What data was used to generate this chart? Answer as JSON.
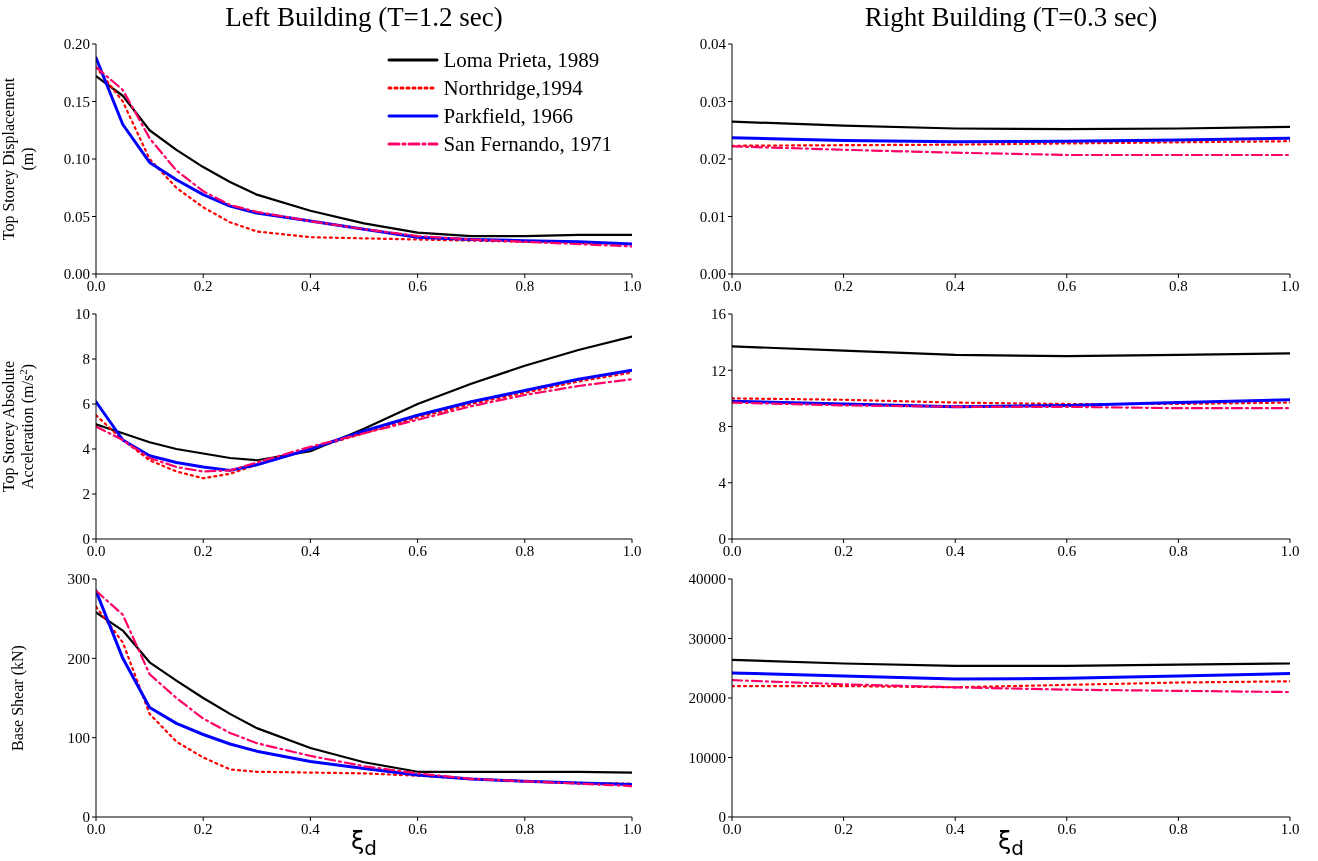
{
  "chart_data": [
    {
      "type": "line",
      "title": "Left Building (T=1.2 sec)",
      "ylabel": "Top Storey Displacement (m)",
      "x": [
        0,
        0.05,
        0.1,
        0.15,
        0.2,
        0.25,
        0.3,
        0.4,
        0.5,
        0.6,
        0.7,
        0.8,
        0.9,
        1.0
      ],
      "xlim": [
        0,
        1
      ],
      "xticks": [
        {
          "value": 0,
          "label": "0.0"
        },
        {
          "value": 0.2,
          "label": "0.2"
        },
        {
          "value": 0.4,
          "label": "0.4"
        },
        {
          "value": 0.6,
          "label": "0.6"
        },
        {
          "value": 0.8,
          "label": "0.8"
        },
        {
          "value": 1,
          "label": "1.0"
        }
      ],
      "ylim": [
        0,
        0.2
      ],
      "yticks": [
        {
          "value": 0,
          "label": "0.00"
        },
        {
          "value": 0.05,
          "label": "0.05"
        },
        {
          "value": 0.1,
          "label": "0.10"
        },
        {
          "value": 0.15,
          "label": "0.15"
        },
        {
          "value": 0.2,
          "label": "0.20"
        }
      ],
      "grid": false,
      "legend": "top right",
      "marker": "none",
      "series": [
        {
          "name": "Loma Prieta, 1989",
          "color": "#000000",
          "line_style": "solid",
          "values": [
            0.172,
            0.155,
            0.125,
            0.108,
            0.093,
            0.08,
            0.069,
            0.055,
            0.044,
            0.036,
            0.033,
            0.033,
            0.034,
            0.034
          ]
        },
        {
          "name": "Northridge,1994",
          "color": "#ff0000",
          "line_style": "dotted",
          "values": [
            0.18,
            0.15,
            0.1,
            0.075,
            0.058,
            0.045,
            0.037,
            0.032,
            0.031,
            0.03,
            0.029,
            0.028,
            0.027,
            0.026
          ]
        },
        {
          "name": "Parkfield, 1966",
          "color": "#0000ff",
          "line_style": "solid",
          "values": [
            0.188,
            0.13,
            0.097,
            0.082,
            0.069,
            0.059,
            0.053,
            0.046,
            0.039,
            0.032,
            0.03,
            0.029,
            0.028,
            0.026
          ]
        },
        {
          "name": "San Fernando, 1971",
          "color": "#ff0066",
          "line_style": "dashed",
          "values": [
            0.18,
            0.16,
            0.118,
            0.09,
            0.072,
            0.06,
            0.054,
            0.046,
            0.039,
            0.033,
            0.03,
            0.028,
            0.026,
            0.024
          ]
        }
      ]
    },
    {
      "type": "line",
      "title": "Right Building (T=0.3 sec)",
      "x": [
        0,
        0.2,
        0.4,
        0.6,
        0.8,
        1.0
      ],
      "xlim": [
        0,
        1
      ],
      "xticks": [
        {
          "value": 0,
          "label": "0.0"
        },
        {
          "value": 0.2,
          "label": "0.2"
        },
        {
          "value": 0.4,
          "label": "0.4"
        },
        {
          "value": 0.6,
          "label": "0.6"
        },
        {
          "value": 0.8,
          "label": "0.8"
        },
        {
          "value": 1,
          "label": "1.0"
        }
      ],
      "ylim": [
        0,
        0.04
      ],
      "yticks": [
        {
          "value": 0,
          "label": "0.00"
        },
        {
          "value": 0.01,
          "label": "0.01"
        },
        {
          "value": 0.02,
          "label": "0.02"
        },
        {
          "value": 0.03,
          "label": "0.03"
        },
        {
          "value": 0.04,
          "label": "0.04"
        }
      ],
      "grid": false,
      "marker": "none",
      "series": [
        {
          "color": "#000000",
          "line_style": "solid",
          "values": [
            0.0265,
            0.0258,
            0.0253,
            0.0252,
            0.0253,
            0.0256
          ]
        },
        {
          "color": "#ff0000",
          "line_style": "dotted",
          "values": [
            0.0223,
            0.0224,
            0.0225,
            0.0227,
            0.0229,
            0.0231
          ]
        },
        {
          "color": "#0000ff",
          "line_style": "solid",
          "values": [
            0.0237,
            0.0232,
            0.023,
            0.0231,
            0.0233,
            0.0236
          ]
        },
        {
          "color": "#ff0066",
          "line_style": "dashed",
          "values": [
            0.0222,
            0.0216,
            0.0211,
            0.0207,
            0.0207,
            0.0207
          ]
        }
      ]
    },
    {
      "type": "line",
      "ylabel": "Top Storey Absolute Acceleration (m/s$^{2}$)",
      "x": [
        0,
        0.05,
        0.1,
        0.15,
        0.2,
        0.25,
        0.3,
        0.4,
        0.5,
        0.6,
        0.7,
        0.8,
        0.9,
        1.0
      ],
      "xlim": [
        0,
        1
      ],
      "xticks": [
        {
          "value": 0,
          "label": "0.0"
        },
        {
          "value": 0.2,
          "label": "0.2"
        },
        {
          "value": 0.4,
          "label": "0.4"
        },
        {
          "value": 0.6,
          "label": "0.6"
        },
        {
          "value": 0.8,
          "label": "0.8"
        },
        {
          "value": 1,
          "label": "1.0"
        }
      ],
      "ylim": [
        0,
        10
      ],
      "yticks": [
        0,
        2,
        4,
        6,
        8,
        10
      ],
      "grid": false,
      "marker": "none",
      "series": [
        {
          "color": "#000000",
          "line_style": "solid",
          "values": [
            5.1,
            4.7,
            4.3,
            4.0,
            3.8,
            3.6,
            3.5,
            3.9,
            4.9,
            6.0,
            6.9,
            7.7,
            8.4,
            9.0
          ]
        },
        {
          "color": "#ff0000",
          "line_style": "dotted",
          "values": [
            5.5,
            4.4,
            3.5,
            3.0,
            2.7,
            2.9,
            3.3,
            4.0,
            4.7,
            5.4,
            6.0,
            6.5,
            7.0,
            7.4
          ]
        },
        {
          "color": "#0000ff",
          "line_style": "solid",
          "values": [
            6.1,
            4.4,
            3.7,
            3.4,
            3.2,
            3.05,
            3.3,
            4.0,
            4.8,
            5.5,
            6.1,
            6.6,
            7.1,
            7.5
          ]
        },
        {
          "color": "#ff0066",
          "line_style": "dashed",
          "values": [
            5.0,
            4.4,
            3.6,
            3.2,
            3.0,
            3.05,
            3.4,
            4.1,
            4.7,
            5.3,
            5.9,
            6.4,
            6.8,
            7.1
          ]
        }
      ]
    },
    {
      "type": "line",
      "x": [
        0,
        0.2,
        0.4,
        0.6,
        0.8,
        1.0
      ],
      "xlim": [
        0,
        1
      ],
      "xticks": [
        {
          "value": 0,
          "label": "0.0"
        },
        {
          "value": 0.2,
          "label": "0.2"
        },
        {
          "value": 0.4,
          "label": "0.4"
        },
        {
          "value": 0.6,
          "label": "0.6"
        },
        {
          "value": 0.8,
          "label": "0.8"
        },
        {
          "value": 1,
          "label": "1.0"
        }
      ],
      "ylim": [
        0,
        16
      ],
      "yticks": [
        0,
        4,
        8,
        12,
        16
      ],
      "grid": false,
      "marker": "none",
      "series": [
        {
          "color": "#000000",
          "line_style": "solid",
          "values": [
            13.7,
            13.4,
            13.1,
            13.0,
            13.1,
            13.2
          ]
        },
        {
          "color": "#ff0000",
          "line_style": "dotted",
          "values": [
            10.0,
            9.9,
            9.7,
            9.6,
            9.6,
            9.7
          ]
        },
        {
          "color": "#0000ff",
          "line_style": "solid",
          "values": [
            9.8,
            9.6,
            9.4,
            9.5,
            9.7,
            9.9
          ]
        },
        {
          "color": "#ff0066",
          "line_style": "dashed",
          "values": [
            9.7,
            9.5,
            9.4,
            9.4,
            9.3,
            9.3
          ]
        }
      ]
    },
    {
      "type": "line",
      "ylabel": "Base Shear (kN)",
      "xlabel": "ξ$_{d}$",
      "x": [
        0,
        0.05,
        0.1,
        0.15,
        0.2,
        0.25,
        0.3,
        0.4,
        0.5,
        0.6,
        0.7,
        0.8,
        0.9,
        1.0
      ],
      "xlim": [
        0,
        1
      ],
      "xticks": [
        {
          "value": 0,
          "label": "0.0"
        },
        {
          "value": 0.2,
          "label": "0.2"
        },
        {
          "value": 0.4,
          "label": "0.4"
        },
        {
          "value": 0.6,
          "label": "0.6"
        },
        {
          "value": 0.8,
          "label": "0.8"
        },
        {
          "value": 1,
          "label": "1.0"
        }
      ],
      "ylim": [
        0,
        300
      ],
      "yticks": [
        0,
        100,
        200,
        300
      ],
      "grid": false,
      "marker": "none",
      "series": [
        {
          "color": "#000000",
          "line_style": "solid",
          "values": [
            258,
            235,
            195,
            172,
            150,
            130,
            112,
            87,
            69,
            57,
            57,
            57,
            57,
            56
          ]
        },
        {
          "color": "#ff0000",
          "line_style": "dotted",
          "values": [
            265,
            220,
            130,
            95,
            75,
            60,
            57,
            56,
            55,
            52,
            48,
            45,
            43,
            42
          ]
        },
        {
          "color": "#0000ff",
          "line_style": "solid",
          "values": [
            285,
            200,
            138,
            118,
            104,
            92,
            83,
            70,
            61,
            53,
            48,
            45,
            43,
            41
          ]
        },
        {
          "color": "#ff0066",
          "line_style": "dashed",
          "values": [
            285,
            255,
            180,
            150,
            124,
            106,
            93,
            77,
            64,
            55,
            48,
            45,
            42,
            39
          ]
        }
      ]
    },
    {
      "type": "line",
      "xlabel": "ξ$_{d}$",
      "x": [
        0,
        0.2,
        0.4,
        0.6,
        0.8,
        1.0
      ],
      "xlim": [
        0,
        1
      ],
      "xticks": [
        {
          "value": 0,
          "label": "0.0"
        },
        {
          "value": 0.2,
          "label": "0.2"
        },
        {
          "value": 0.4,
          "label": "0.4"
        },
        {
          "value": 0.6,
          "label": "0.6"
        },
        {
          "value": 0.8,
          "label": "0.8"
        },
        {
          "value": 1,
          "label": "1.0"
        }
      ],
      "ylim": [
        0,
        40000
      ],
      "yticks": [
        0,
        10000,
        20000,
        30000,
        40000
      ],
      "grid": false,
      "marker": "none",
      "series": [
        {
          "color": "#000000",
          "line_style": "solid",
          "values": [
            26400,
            25800,
            25400,
            25400,
            25600,
            25800
          ]
        },
        {
          "color": "#ff0000",
          "line_style": "dotted",
          "values": [
            22000,
            22000,
            21800,
            22200,
            22600,
            22800
          ]
        },
        {
          "color": "#0000ff",
          "line_style": "solid",
          "values": [
            24200,
            23700,
            23200,
            23300,
            23700,
            24100
          ]
        },
        {
          "color": "#ff0066",
          "line_style": "dashed",
          "values": [
            23000,
            22300,
            21800,
            21400,
            21200,
            21000
          ]
        }
      ]
    }
  ]
}
